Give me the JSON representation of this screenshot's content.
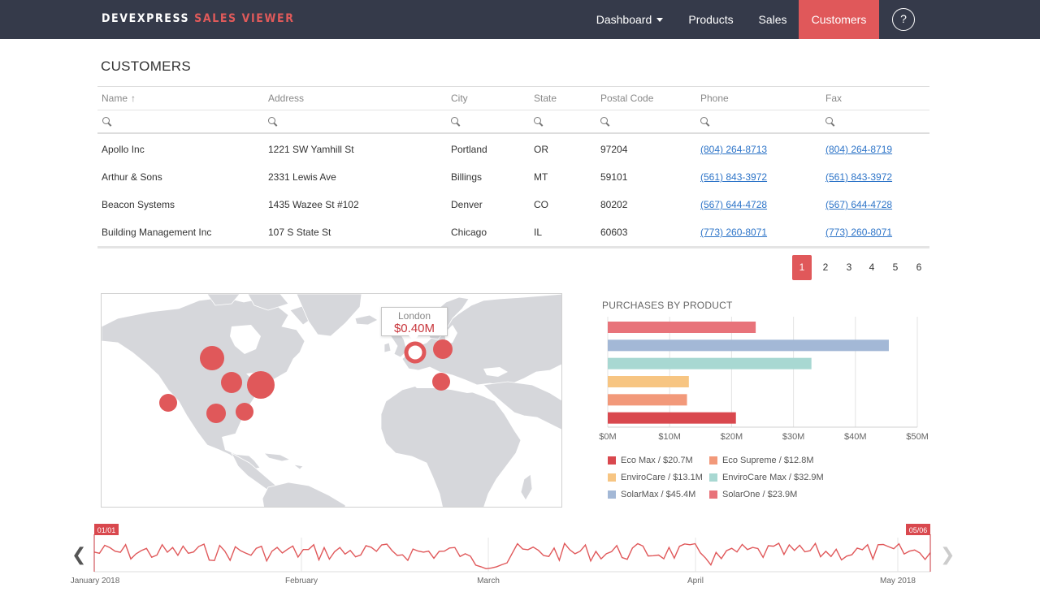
{
  "header": {
    "brand_part1": "DEVEXPRESS",
    "brand_part2": "SALES VIEWER",
    "nav": [
      {
        "label": "Dashboard",
        "has_caret": true,
        "active": false
      },
      {
        "label": "Products",
        "has_caret": false,
        "active": false
      },
      {
        "label": "Sales",
        "has_caret": false,
        "active": false
      },
      {
        "label": "Customers",
        "has_caret": false,
        "active": true
      }
    ],
    "help_label": "?"
  },
  "page_title": "CUSTOMERS",
  "grid": {
    "columns": [
      "Name",
      "Address",
      "City",
      "State",
      "Postal Code",
      "Phone",
      "Fax"
    ],
    "sort_indicator": "↑",
    "rows": [
      [
        "Apollo Inc",
        "1221 SW Yamhill St",
        "Portland",
        "OR",
        "97204",
        "(804) 264-8713",
        "(804) 264-8719"
      ],
      [
        "Arthur & Sons",
        "2331 Lewis Ave",
        "Billings",
        "MT",
        "59101",
        "(561) 843-3972",
        "(561) 843-3972"
      ],
      [
        "Beacon Systems",
        "1435 Wazee St #102",
        "Denver",
        "CO",
        "80202",
        "(567) 644-4728",
        "(567) 644-4728"
      ],
      [
        "Building Management Inc",
        "107 S State St",
        "Chicago",
        "IL",
        "60603",
        "(773) 260-8071",
        "(773) 260-8071"
      ]
    ]
  },
  "pager": {
    "pages": [
      "1",
      "2",
      "3",
      "4",
      "5",
      "6"
    ],
    "active_page": "1"
  },
  "map": {
    "tooltip_city": "London",
    "tooltip_value": "$0.40M",
    "bubble_color": "#e0585a"
  },
  "chart_data": {
    "type": "bar",
    "orientation": "horizontal",
    "title": "PURCHASES BY PRODUCT",
    "xlim": [
      0,
      50
    ],
    "x_unit": "$M",
    "x_tick_labels": [
      "$0M",
      "$10M",
      "$20M",
      "$30M",
      "$40M",
      "$50M"
    ],
    "grid": true,
    "categories": [
      "SolarOne",
      "SolarMax",
      "EnviroCare Max",
      "EnviroCare",
      "Eco Supreme",
      "Eco Max"
    ],
    "values": [
      23.9,
      45.4,
      32.9,
      13.1,
      12.8,
      20.7
    ],
    "colors": [
      "#e8737a",
      "#a3b8d6",
      "#a8d8d2",
      "#f7c582",
      "#f2997a",
      "#d9484e"
    ],
    "legend_position": "bottom",
    "legend": [
      {
        "label": "Eco Max / $20.7M",
        "color": "#d9484e"
      },
      {
        "label": "Eco Supreme / $12.8M",
        "color": "#f2997a"
      },
      {
        "label": "EnviroCare / $13.1M",
        "color": "#f7c582"
      },
      {
        "label": "EnviroCare Max / $32.9M",
        "color": "#a8d8d2"
      },
      {
        "label": "SolarMax / $45.4M",
        "color": "#a3b8d6"
      },
      {
        "label": "SolarOne / $23.9M",
        "color": "#e8737a"
      }
    ]
  },
  "timeline": {
    "start_marker": "01/01",
    "end_marker": "05/06",
    "month_labels": [
      "January 2018",
      "February",
      "March",
      "April",
      "May 2018"
    ],
    "line_color": "#e0585a",
    "prev_arrow": "❮",
    "next_arrow": "❯"
  }
}
